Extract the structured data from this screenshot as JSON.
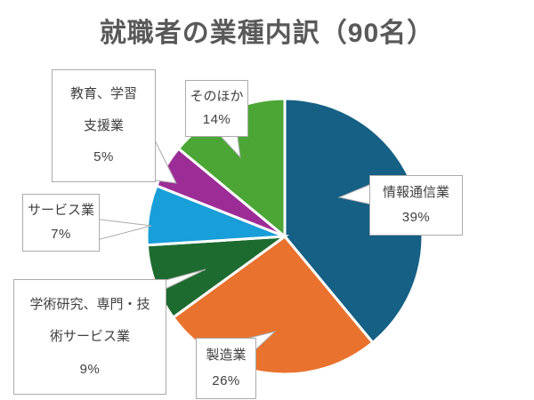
{
  "title": "就職者の業種内訳（90名）",
  "chart_data": {
    "type": "pie",
    "title": "就職者の業種内訳（90名）",
    "total_label": "90名",
    "start_angle_deg": 0,
    "direction": "clockwise",
    "legend_position": "none",
    "segments": [
      {
        "key": "ict",
        "label": "情報通信業",
        "value": 39,
        "pct_label": "39%",
        "color": "#156084"
      },
      {
        "key": "manufacturing",
        "label": "製造業",
        "value": 26,
        "pct_label": "26%",
        "color": "#E9732E"
      },
      {
        "key": "academic",
        "label": "学術研究、専門・技術サービス業",
        "value": 9,
        "pct_label": "9%",
        "color": "#1E6B30"
      },
      {
        "key": "service",
        "label": "サービス業",
        "value": 7,
        "pct_label": "7%",
        "color": "#189ED8"
      },
      {
        "key": "education",
        "label": "教育、学習支援業",
        "value": 5,
        "pct_label": "5%",
        "color": "#9C2D96"
      },
      {
        "key": "other",
        "label": "そのほか",
        "value": 14,
        "pct_label": "14%",
        "color": "#4CA636"
      }
    ]
  },
  "callouts": {
    "education": {
      "line1": "教育、学習",
      "line2": "支援業",
      "pct": "5%"
    },
    "other": {
      "line1": "そのほか",
      "pct": "14%"
    },
    "service": {
      "line1": "サービス業",
      "pct": "7%"
    },
    "academic": {
      "line1": "学術研究、専門・技",
      "line2": "術サービス業",
      "pct": "9%"
    },
    "manufacturing": {
      "line1": "製造業",
      "pct": "26%"
    },
    "ict": {
      "line1": "情報通信業",
      "pct": "39%"
    }
  },
  "colors": {
    "title_text": "#595959",
    "label_text": "#404040",
    "callout_border": "#ABABAB",
    "slice_separator": "#FFFFFF"
  }
}
